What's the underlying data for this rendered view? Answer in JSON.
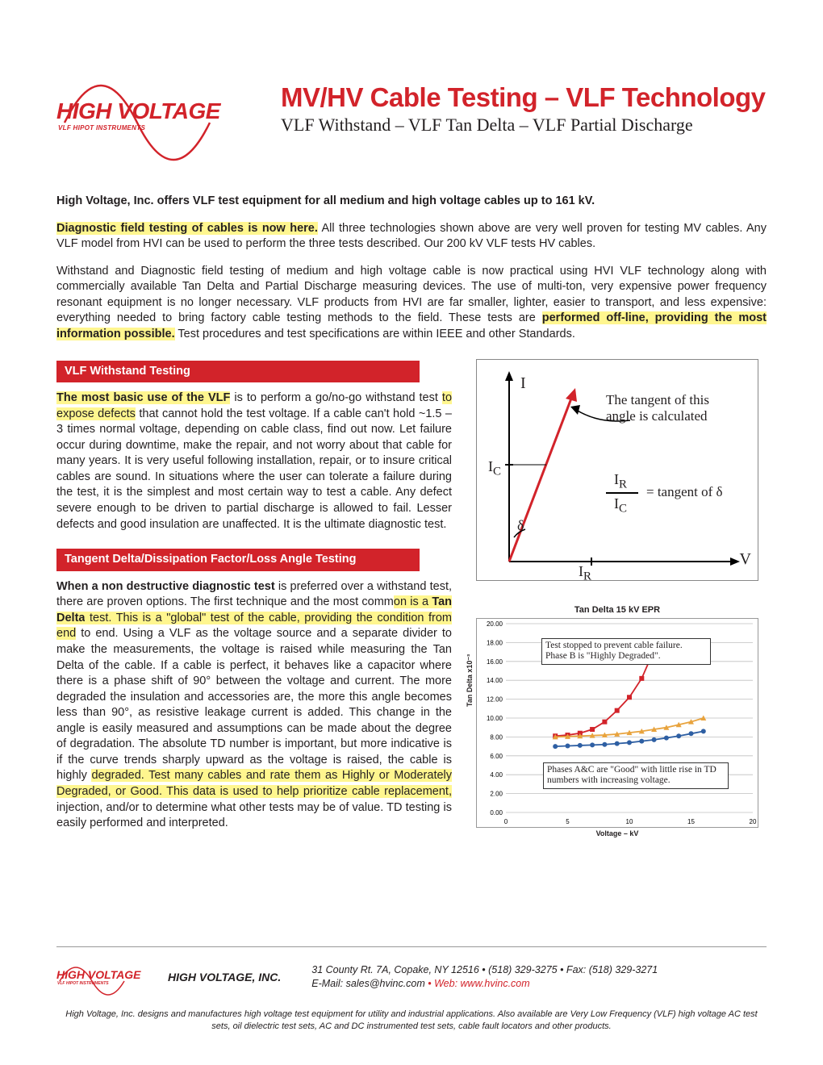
{
  "logo": {
    "brand": "HIGH VOLTAGE",
    "tagline": "VLF HIPOT INSTRUMENTS",
    "wave_color": "#d2232a"
  },
  "title": {
    "main": "MV/HV Cable Testing – VLF Technology",
    "sub": "VLF Withstand – VLF Tan Delta – VLF Partial Discharge"
  },
  "intro": {
    "line1": "High Voltage, Inc. offers VLF test equipment for all medium and high voltage cables up to 161 kV.",
    "p2_hl": "Diagnostic field testing of cables is now here.",
    "p2_rest": " All three technologies shown above are very well proven for testing MV cables. Any VLF model from HVI can be used to perform the three tests described. Our 200 kV VLF tests HV cables.",
    "p3_a": "Withstand and Diagnostic field testing of medium and high voltage cable is now practical using HVI VLF technology along with commercially available Tan Delta and Partial Discharge measuring devices. The use of multi-ton, very expensive power frequency resonant equipment is no longer necessary. VLF products from HVI are far smaller, lighter, easier to transport, and less expensive: everything needed to bring factory cable testing methods to the field. These tests are ",
    "p3_hl": "performed off-line, providing the most information possible.",
    "p3_b": " Test procedures and test specifications are within IEEE and other Standards."
  },
  "sections": {
    "withstand_title": "VLF Withstand Testing",
    "withstand_hl": "The most basic use of the VLF",
    "withstand_a": " is to perform a go/no-go withstand test ",
    "withstand_hl2": "to expose defects",
    "withstand_b": " that cannot hold the test voltage. If a cable can't hold ~1.5 – 3 times normal voltage, depending on cable class, find out now. Let failure occur during downtime, make the repair, and not worry about that cable for many years. It is very useful following installation, repair, or to insure critical cables are sound. In situations where the user can tolerate a failure during the test, it is the simplest and most certain way to test a cable. Any defect severe enough to be driven to partial discharge is allowed to fail. Lesser defects and good insulation are unaffected. It is the ultimate diagnostic test.",
    "tandelta_title": "Tangent Delta/Dissipation Factor/Loss Angle Testing",
    "tandelta_lead": "When a non destructive diagnostic test",
    "tandelta_a": " is preferred over a withstand test, there are proven options. The first technique and the most comm",
    "tandelta_hl1": "on is a ",
    "tandelta_bold": "Tan Delta",
    "tandelta_hl1b": " test. This is a \"global\" test of the cable, providing the condition from end",
    "tandelta_b": " to end. Using a VLF as the voltage source and a separate divider to make the measurements, the voltage is raised while measuring the Tan Delta of the cable. If a cable is perfect, it behaves like a capacitor where there is a phase shift of 90° between the voltage and current. The more degraded the insulation and accessories are, the more this angle becomes less than 90°, as resistive leakage current is added. This change in the angle is easily measured and assumptions can be made about the degree of degradation. The absolute TD number is important, but more indicative is if the curve trends sharply upward as the voltage is raised, the cable is highly ",
    "tandelta_hl2": "degraded. Test many cables and rate them as Highly or Moderately Degraded, or Good. This data is used to help prioritize cable replacement,",
    "tandelta_c": " injection, and/or to determine what other tests may be of value. TD testing is easily performed and interpreted."
  },
  "diagram": {
    "label_I": "I",
    "label_Ic": "I",
    "label_Ic_sub": "C",
    "label_Ir": "I",
    "label_Ir_sub": "R",
    "label_V": "V",
    "delta": "δ",
    "text1": "The tangent of this",
    "text2": "angle is calculated",
    "frac_top": "I",
    "frac_top_sub": "R",
    "frac_bot": "I",
    "frac_bot_sub": "C",
    "eq": "= tangent of  δ",
    "line_color": "#d2232a",
    "axis_color": "#000000"
  },
  "chart": {
    "title": "Tan Delta 15 kV EPR",
    "ylabel": "Tan Delta x10⁻³",
    "xlabel": "Voltage – kV",
    "xlim": [
      0,
      20
    ],
    "ylim": [
      0,
      20
    ],
    "xticks": [
      0,
      5,
      10,
      15,
      20
    ],
    "yticks": [
      0,
      2,
      4,
      6,
      8,
      10,
      12,
      14,
      16,
      18,
      20
    ],
    "grid_color": "#bfbfbf",
    "series": [
      {
        "name": "Phase B",
        "color": "#d2232a",
        "marker": "square",
        "x": [
          4,
          5,
          6,
          7,
          8,
          9,
          10,
          11,
          12
        ],
        "y": [
          8.1,
          8.2,
          8.4,
          8.8,
          9.6,
          10.8,
          12.2,
          14.2,
          17.2
        ]
      },
      {
        "name": "Phase A",
        "color": "#e8a33d",
        "marker": "triangle",
        "x": [
          4,
          5,
          6,
          7,
          8,
          9,
          10,
          11,
          12,
          13,
          14,
          15,
          16
        ],
        "y": [
          8.0,
          8.05,
          8.1,
          8.15,
          8.2,
          8.3,
          8.45,
          8.6,
          8.8,
          9.0,
          9.3,
          9.6,
          10.0
        ]
      },
      {
        "name": "Phase C",
        "color": "#2e5fa3",
        "marker": "circle",
        "x": [
          4,
          5,
          6,
          7,
          8,
          9,
          10,
          11,
          12,
          13,
          14,
          15,
          16
        ],
        "y": [
          7.0,
          7.05,
          7.1,
          7.15,
          7.2,
          7.3,
          7.4,
          7.55,
          7.7,
          7.9,
          8.1,
          8.35,
          8.6
        ]
      }
    ],
    "annot1": "Test stopped to prevent cable failure.\nPhase B is \"Highly Degraded\".",
    "annot2": "Phases A&C are \"Good\" with little rise in TD numbers with increasing voltage."
  },
  "footer": {
    "company": "HIGH VOLTAGE, INC.",
    "addr": "31 County Rt. 7A, Copake, NY 12516 • (518) 329-3275 • Fax: (518) 329-3271",
    "email_label": "E-Mail: ",
    "email": "sales@hvinc.com",
    "web_label": " • Web: ",
    "web": "www.hvinc.com",
    "disclaimer": "High Voltage, Inc. designs and manufactures high voltage test equipment for utility and industrial applications. Also available are Very Low Frequency (VLF) high voltage AC test sets, oil dielectric test sets, AC and DC instrumented test sets, cable fault locators and other products."
  }
}
